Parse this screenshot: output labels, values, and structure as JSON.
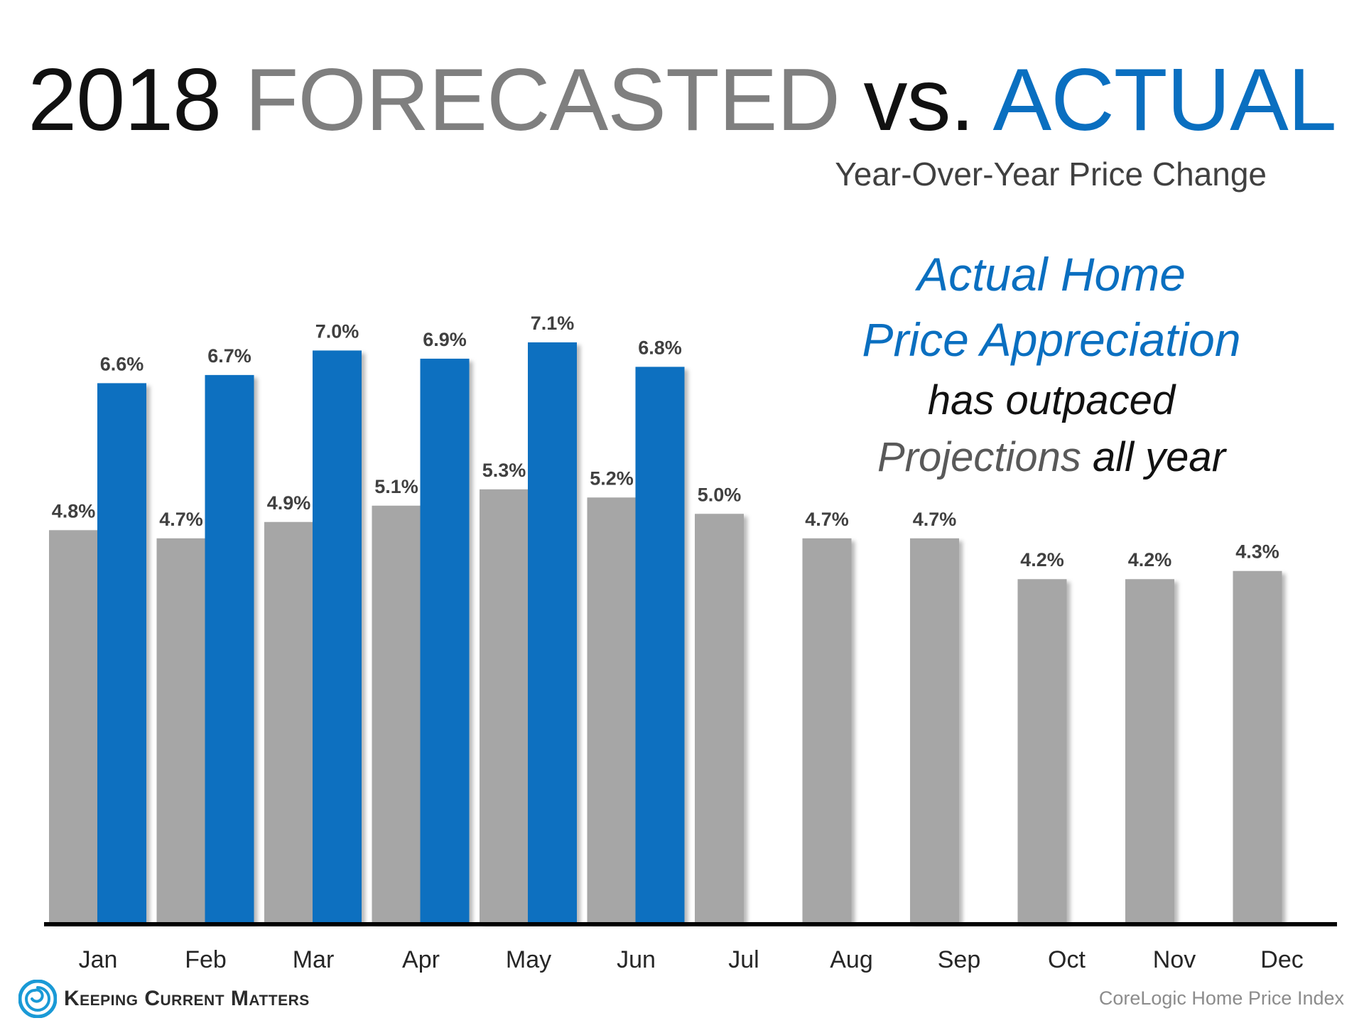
{
  "title": {
    "year": "2018",
    "forecasted": "FORECASTED",
    "vs": "vs.",
    "actual": "ACTUAL"
  },
  "subtitle": "Year-Over-Year Price Change",
  "callout": {
    "line1": "Actual Home",
    "line2": "Price Appreciation",
    "line3": "has outpaced",
    "line4a": "Projections",
    "line4b": "all year"
  },
  "source": "CoreLogic Home Price Index",
  "logo": {
    "text": "Keeping Current Matters",
    "icon": "spiral-logo-icon"
  },
  "colors": {
    "forecast": "#a6a6a6",
    "actual": "#0a6fc0",
    "axis": "#000000",
    "title_gray": "#7f7f7f"
  },
  "chart_data": {
    "type": "bar",
    "title": "2018 FORECASTED vs. ACTUAL",
    "subtitle": "Year-Over-Year Price Change",
    "xlabel": "",
    "ylabel": "",
    "ylim": [
      0,
      8.7
    ],
    "grid": false,
    "categories": [
      "Jan",
      "Feb",
      "Mar",
      "Apr",
      "May",
      "Jun",
      "Jul",
      "Aug",
      "Sep",
      "Oct",
      "Nov",
      "Dec"
    ],
    "series": [
      {
        "name": "FORECASTED",
        "values": [
          4.8,
          4.7,
          4.9,
          5.1,
          5.3,
          5.2,
          5.0,
          4.7,
          4.7,
          4.2,
          4.2,
          4.3
        ],
        "labels": [
          "4.8%",
          "4.7%",
          "4.9%",
          "5.1%",
          "5.3%",
          "5.2%",
          "5.0%",
          "4.7%",
          "4.7%",
          "4.2%",
          "4.2%",
          "4.3%"
        ]
      },
      {
        "name": "ACTUAL",
        "values": [
          6.6,
          6.7,
          7.0,
          6.9,
          7.1,
          6.8,
          null,
          null,
          null,
          null,
          null,
          null
        ],
        "labels": [
          "6.6%",
          "6.7%",
          "7.0%",
          "6.9%",
          "7.1%",
          "6.8%",
          null,
          null,
          null,
          null,
          null,
          null
        ]
      }
    ]
  }
}
